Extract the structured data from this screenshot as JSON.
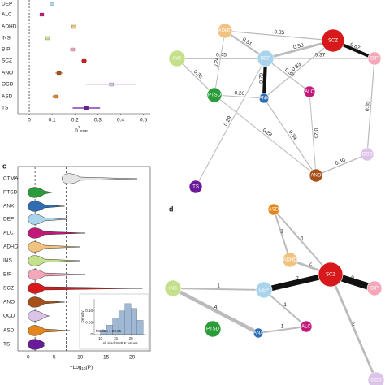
{
  "chart_data": [
    {
      "type": "errorbar",
      "categories": [
        "DEP",
        "ALC",
        "ADHD",
        "INS",
        "BIP",
        "SCZ",
        "ANO",
        "OCD",
        "ASD",
        "TS"
      ],
      "values": [
        0.1,
        0.055,
        0.195,
        0.08,
        0.19,
        0.24,
        0.13,
        0.36,
        0.115,
        0.25
      ],
      "errors": [
        0.01,
        0.005,
        0.012,
        0.008,
        0.012,
        0.012,
        0.015,
        0.11,
        0.015,
        0.06
      ],
      "colors": [
        "#a9d4ec",
        "#c2187a",
        "#f2c27f",
        "#c5e08a",
        "#f4a7b9",
        "#d7191c",
        "#a6501a",
        "#dcc4e8",
        "#e6861a",
        "#6a1b9a"
      ],
      "xlim": [
        -0.05,
        0.53
      ],
      "xticks": [
        0,
        0.1,
        0.2,
        0.3,
        0.4,
        0.5
      ],
      "refline": 0,
      "xlabel": "h",
      "xlabel_sup": "2",
      "xlabel_sub": "SNP"
    },
    {
      "type": "network",
      "nodes": [
        "ADHD",
        "SCZ",
        "BIP",
        "INS",
        "DEP",
        "PTSD",
        "ANX",
        "ALC",
        "OCD",
        "TS",
        "ANO"
      ],
      "colors": [
        "#f2c27f",
        "#d7191c",
        "#f4a7b9",
        "#c5e08a",
        "#a9d4ec",
        "#2a9d3a",
        "#2f6db3",
        "#c2187a",
        "#dcc4e8",
        "#6a1b9a",
        "#a6501a"
      ],
      "edges": [
        [
          "ADHD",
          "DEP"
        ],
        [
          "INS",
          "DEP"
        ],
        [
          "DEP",
          "SCZ"
        ],
        [
          "SCZ",
          "BIP"
        ],
        [
          "DEP",
          "ANX"
        ],
        [
          "PTSD",
          "ANX"
        ],
        [
          "INS",
          "PTSD"
        ],
        [
          "ADHD",
          "SCZ"
        ],
        [
          "DEP",
          "ALC"
        ],
        [
          "PTSD",
          "ANO"
        ],
        [
          "ANX",
          "ANO"
        ],
        [
          "ANO",
          "OCD"
        ],
        [
          "BIP",
          "OCD"
        ],
        [
          "ADHD",
          "PTSD"
        ],
        [
          "ALC",
          "ANO"
        ],
        [
          "DEP",
          "BIP"
        ],
        [
          "TS",
          "DEP"
        ],
        [
          "SCZ",
          "ANX"
        ]
      ],
      "values": [
        0.51,
        0.45,
        0.58,
        0.67,
        0.7,
        0.2,
        0.36,
        0.35,
        0.38,
        0.28,
        0.34,
        0.4,
        0.35,
        0.24,
        0.26,
        0.37,
        0.29,
        0.33
      ],
      "value_labels": [
        "0.51",
        "0.45",
        "0.58",
        "0.67",
        "0.70",
        "0.20",
        "0.36",
        "0.35",
        "0.38",
        "0.28",
        "0.34",
        "0.40",
        "0.35",
        "0.24",
        "0.26",
        "0.37",
        "0.29",
        "0.33"
      ]
    },
    {
      "type": "violin",
      "panel": "c",
      "categories": [
        "CTMA",
        "PTSD",
        "ANX",
        "DEP",
        "ALC",
        "ADHD",
        "INS",
        "BIP",
        "SCZ",
        "ANO",
        "OCD",
        "ASD",
        "TS"
      ],
      "values": [
        21,
        4.5,
        7,
        7.5,
        11,
        10,
        10,
        11,
        22,
        7,
        4,
        8,
        3
      ],
      "colors": [
        "#e4e4e4",
        "#2a9d3a",
        "#2f6db3",
        "#a9d4ec",
        "#c2187a",
        "#f2c27f",
        "#c5e08a",
        "#f4a7b9",
        "#d7191c",
        "#a6501a",
        "#dcc4e8",
        "#e6861a",
        "#6a1b9a"
      ],
      "xlim": [
        -2,
        23.5
      ],
      "xticks": [
        0,
        5,
        10,
        15,
        20
      ],
      "thresholds": [
        1.3,
        7.3
      ],
      "xlabel": "−Log",
      "xlabel_sub": "10",
      "xlabel_end": "(P)",
      "inset": {
        "type": "histogram",
        "bins": [
          10,
          12,
          14,
          16,
          18,
          20,
          22,
          24
        ],
        "values": [
          0.02,
          0.04,
          0.07,
          0.1,
          0.13,
          0.11,
          0.06
        ],
        "xlim": [
          8,
          25
        ],
        "xticks": [
          10,
          15,
          20
        ],
        "ylim": [
          0,
          0.15
        ],
        "yticks": [
          0,
          0.05,
          {
            "value": 0.1,
            "label": "0.10"
          }
        ],
        "xlabel": "All lead SNP F values",
        "ylabel": "Density",
        "annotation": "Median = 20.85",
        "color": "#9fb8d4"
      }
    },
    {
      "type": "network",
      "panel": "d",
      "nodes": [
        "ASD",
        "ADHD",
        "INS",
        "DEP",
        "SCZ",
        "BIP",
        "PTSD",
        "ANX",
        "ALC",
        "OCD"
      ],
      "colors": [
        "#e6861a",
        "#f2c27f",
        "#c5e08a",
        "#a9d4ec",
        "#d7191c",
        "#f4a7b9",
        "#2a9d3a",
        "#2f6db3",
        "#c2187a",
        "#dcc4e8"
      ],
      "edges": [
        [
          "ASD",
          "ADHD"
        ],
        [
          "ASD",
          "SCZ"
        ],
        [
          "ADHD",
          "SCZ"
        ],
        [
          "SCZ",
          "BIP"
        ],
        [
          "DEP",
          "SCZ"
        ],
        [
          "INS",
          "DEP"
        ],
        [
          "INS",
          "ANX"
        ],
        [
          "DEP",
          "ALC"
        ],
        [
          "ANX",
          "ALC"
        ],
        [
          "SCZ",
          "OCD"
        ]
      ],
      "values": [
        1,
        1,
        2,
        9,
        7,
        1,
        4,
        1,
        1,
        2
      ]
    }
  ]
}
